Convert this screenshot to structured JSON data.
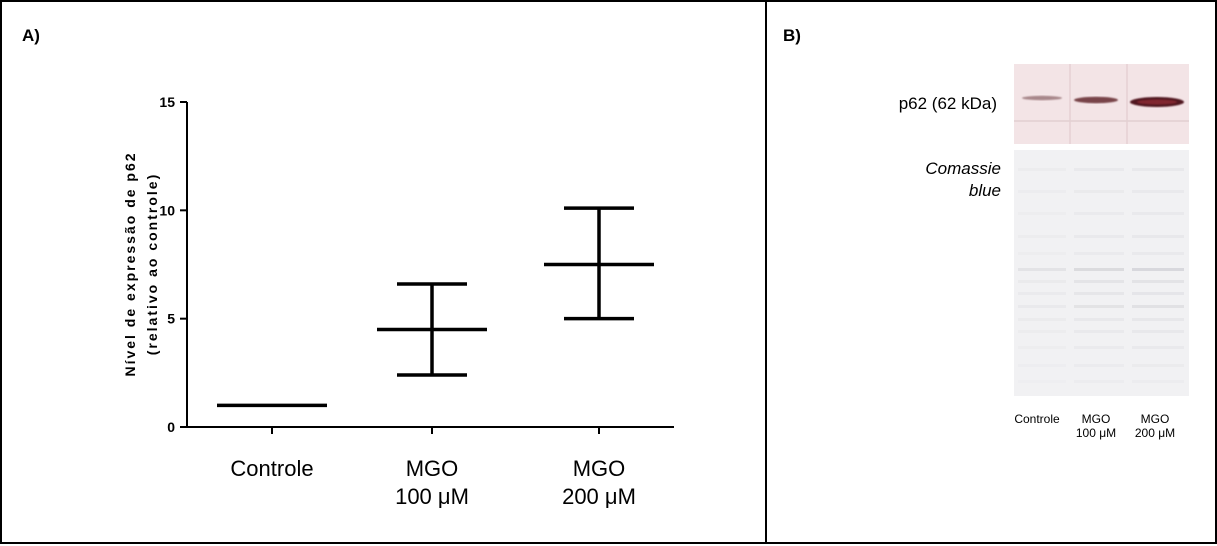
{
  "panel_a": {
    "letter": "A)"
  },
  "panel_b": {
    "letter": "B)",
    "protein_label": "p62 (62 kDa)",
    "stain_label_line1": "Comassie",
    "stain_label_line2": "blue",
    "lanes": [
      {
        "line1": "Controle",
        "line2": ""
      },
      {
        "line1": "MGO",
        "line2": "100 μM"
      },
      {
        "line1": "MGO",
        "line2": "200 μM"
      }
    ],
    "colors": {
      "blot_bg": "#f3e6e8",
      "band": "#5a1418",
      "coomassie_bg": "#f2f2f4"
    }
  },
  "chart_data": {
    "type": "scatter",
    "ylabel_line1": "Nível de expressão de p62",
    "ylabel_line2": "(relativo ao controle)",
    "ylim": [
      0,
      15
    ],
    "yticks": [
      "0",
      "5",
      "10",
      "15"
    ],
    "categories": [
      {
        "line1": "Controle",
        "line2": ""
      },
      {
        "line1": "MGO",
        "line2": "100 μM"
      },
      {
        "line1": "MGO",
        "line2": "200 μM"
      }
    ],
    "series": [
      {
        "mean": [
          1.0,
          4.5,
          7.5
        ],
        "lower": [
          1.0,
          2.4,
          5.0
        ],
        "upper": [
          1.0,
          6.6,
          10.1
        ]
      }
    ],
    "grid": false
  }
}
